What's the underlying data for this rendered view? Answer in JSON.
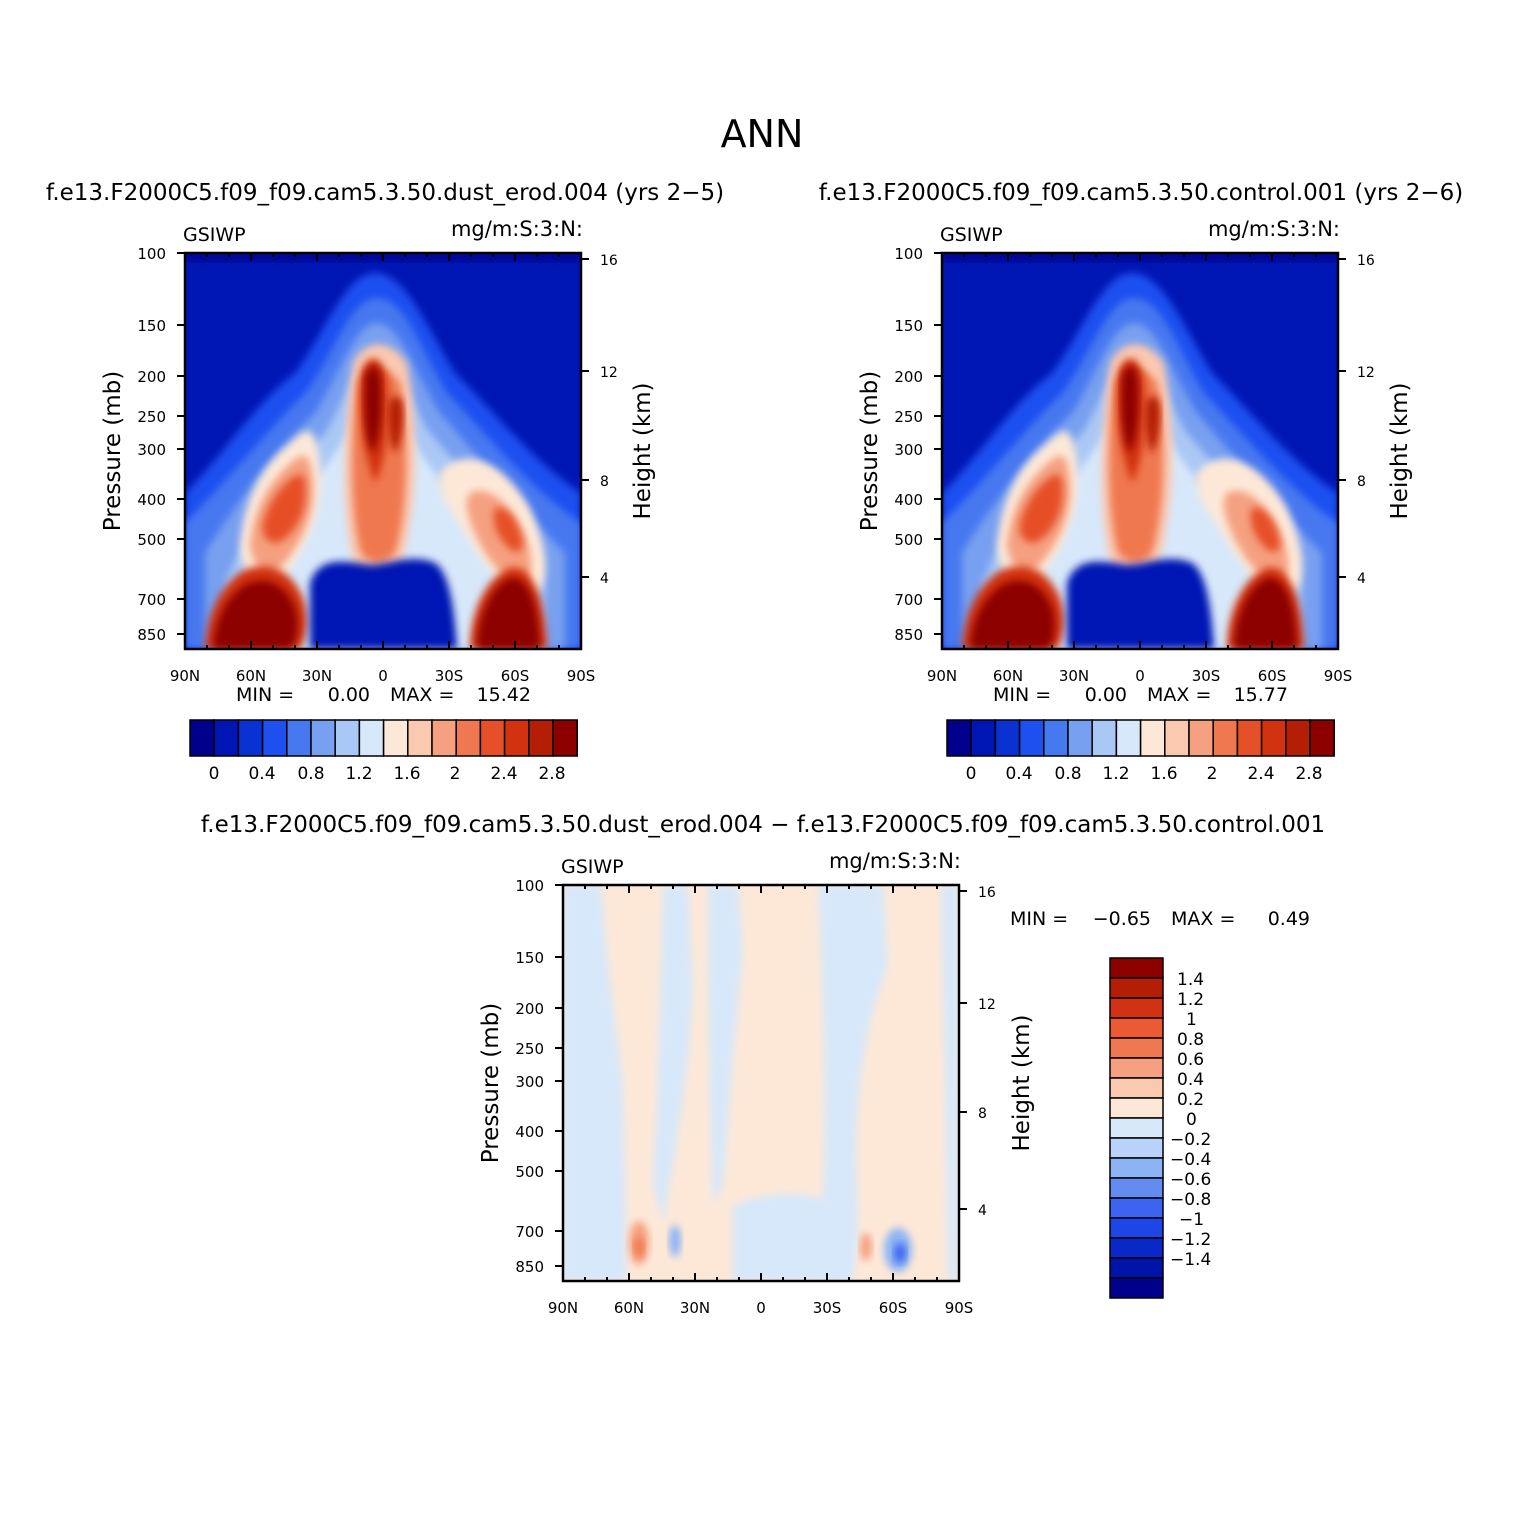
{
  "figure": {
    "title": "ANN"
  },
  "palette": {
    "abs": [
      "#00008c",
      "#0016b4",
      "#0a32d2",
      "#1e50f0",
      "#4678f0",
      "#78a0f0",
      "#aac8f5",
      "#d7e8fa",
      "#fde8d8",
      "#fbc8b0",
      "#f5a080",
      "#f07850",
      "#e65028",
      "#d23210",
      "#b41e05",
      "#8c0000"
    ],
    "diff": [
      "#00008c",
      "#0014aa",
      "#0a28c8",
      "#1e46e6",
      "#3c64f0",
      "#648cf0",
      "#8cb4f5",
      "#b9d2f8",
      "#d7e8fa",
      "#fde8d8",
      "#fbc8b0",
      "#f5a080",
      "#f07850",
      "#eb5a32",
      "#d23214",
      "#b41e05",
      "#8c0000"
    ]
  },
  "chart_data": [
    {
      "type": "heatmap",
      "title": "f.e13.F2000C5.f09_f09.cam5.3.50.dust_erod.004 (yrs 2−5)",
      "left_label": "GSIWP",
      "right_label": "mg/m:S:3:N:",
      "ylabel": "Pressure (mb)",
      "ylabel_right": "Height (km)",
      "x_ticks": [
        "90N",
        "60N",
        "30N",
        "0",
        "30S",
        "60S",
        "90S"
      ],
      "y_ticks": [
        "100",
        "150",
        "200",
        "250",
        "300",
        "400",
        "500",
        "700",
        "850"
      ],
      "y_ticks_right": [
        "16",
        "12",
        "8",
        "4"
      ],
      "stats": {
        "min_label": "MIN =",
        "min_value": "0.00",
        "max_label": "MAX =",
        "max_value": "15.42"
      },
      "colorbar": {
        "orientation": "horizontal",
        "labels": [
          "0",
          "0.4",
          "0.8",
          "1.2",
          "1.6",
          "2",
          "2.4",
          "2.8"
        ]
      }
    },
    {
      "type": "heatmap",
      "title": "f.e13.F2000C5.f09_f09.cam5.3.50.control.001 (yrs 2−6)",
      "left_label": "GSIWP",
      "right_label": "mg/m:S:3:N:",
      "ylabel": "Pressure (mb)",
      "ylabel_right": "Height (km)",
      "x_ticks": [
        "90N",
        "60N",
        "30N",
        "0",
        "30S",
        "60S",
        "90S"
      ],
      "y_ticks": [
        "100",
        "150",
        "200",
        "250",
        "300",
        "400",
        "500",
        "700",
        "850"
      ],
      "y_ticks_right": [
        "16",
        "12",
        "8",
        "4"
      ],
      "stats": {
        "min_label": "MIN =",
        "min_value": "0.00",
        "max_label": "MAX =",
        "max_value": "15.77"
      },
      "colorbar": {
        "orientation": "horizontal",
        "labels": [
          "0",
          "0.4",
          "0.8",
          "1.2",
          "1.6",
          "2",
          "2.4",
          "2.8"
        ]
      }
    },
    {
      "type": "heatmap",
      "title": "f.e13.F2000C5.f09_f09.cam5.3.50.dust_erod.004 − f.e13.F2000C5.f09_f09.cam5.3.50.control.001",
      "left_label": "GSIWP",
      "right_label": "mg/m:S:3:N:",
      "ylabel": "Pressure (mb)",
      "ylabel_right": "Height (km)",
      "x_ticks": [
        "90N",
        "60N",
        "30N",
        "0",
        "30S",
        "60S",
        "90S"
      ],
      "y_ticks": [
        "100",
        "150",
        "200",
        "250",
        "300",
        "400",
        "500",
        "700",
        "850"
      ],
      "y_ticks_right": [
        "16",
        "12",
        "8",
        "4"
      ],
      "stats": {
        "min_label": "MIN =",
        "min_value": "−0.65",
        "max_label": "MAX =",
        "max_value": "0.49"
      },
      "colorbar": {
        "orientation": "vertical",
        "labels": [
          "1.4",
          "1.2",
          "1",
          "0.8",
          "0.6",
          "0.4",
          "0.2",
          "0",
          "−0.2",
          "−0.4",
          "−0.6",
          "−0.8",
          "−1",
          "−1.2",
          "−1.4"
        ]
      }
    }
  ]
}
